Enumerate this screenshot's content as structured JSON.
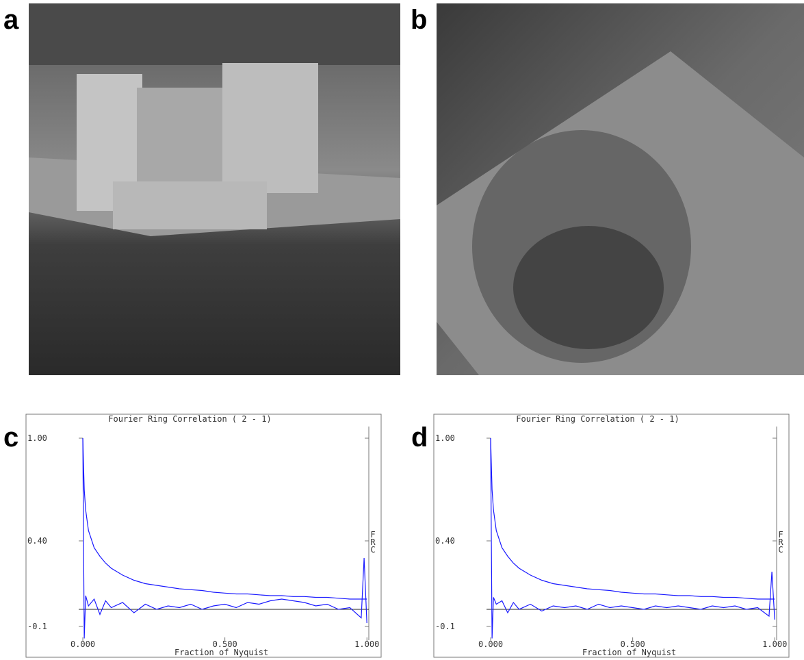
{
  "photos": [
    {
      "label": "a"
    },
    {
      "label": "b"
    }
  ],
  "chart_data": [
    {
      "type": "line",
      "panel": "c",
      "title": "Fourier Ring Correlation (  2 -    1)",
      "x_label": "Fraction of Nyquist",
      "y_label": "FRC",
      "xlim": [
        -0.2,
        1.05
      ],
      "ylim": [
        -0.18,
        1.08
      ],
      "xticks": [
        {
          "value": 0,
          "label": "0.000"
        },
        {
          "value": 0.5,
          "label": "0.500"
        },
        {
          "value": 1,
          "label": "1.000"
        }
      ],
      "yticks": [
        {
          "value": 1,
          "label": "1.00"
        },
        {
          "value": 0.4,
          "label": "0.40"
        },
        {
          "value": -0.1,
          "label": "-0.1"
        }
      ],
      "reference_line": 0,
      "x": [
        0,
        0.005,
        0.01,
        0.02,
        0.04,
        0.06,
        0.08,
        0.1,
        0.14,
        0.18,
        0.22,
        0.26,
        0.3,
        0.34,
        0.38,
        0.42,
        0.46,
        0.5,
        0.54,
        0.58,
        0.62,
        0.66,
        0.7,
        0.74,
        0.78,
        0.82,
        0.86,
        0.9,
        0.94,
        0.98,
        0.99,
        1.0
      ],
      "series": [
        {
          "color": "#1a1aff",
          "values": [
            1.0,
            0.7,
            0.58,
            0.46,
            0.36,
            0.31,
            0.27,
            0.24,
            0.2,
            0.17,
            0.15,
            0.14,
            0.13,
            0.12,
            0.115,
            0.11,
            0.1,
            0.095,
            0.09,
            0.09,
            0.085,
            0.08,
            0.08,
            0.075,
            0.075,
            0.07,
            0.07,
            0.065,
            0.06,
            0.06,
            0.06,
            0.06
          ]
        },
        {
          "color": "#1a1aff",
          "values": [
            1.0,
            -0.17,
            0.08,
            0.02,
            0.06,
            -0.03,
            0.05,
            0.01,
            0.04,
            -0.02,
            0.03,
            0.0,
            0.02,
            0.01,
            0.03,
            0.0,
            0.02,
            0.03,
            0.01,
            0.04,
            0.03,
            0.05,
            0.06,
            0.05,
            0.04,
            0.02,
            0.03,
            0.0,
            0.01,
            -0.05,
            0.3,
            -0.08
          ]
        }
      ]
    },
    {
      "type": "line",
      "panel": "d",
      "title": "Fourier Ring Correlation (  2 -    1)",
      "x_label": "Fraction of Nyquist",
      "y_label": "FRC",
      "xlim": [
        -0.2,
        1.05
      ],
      "ylim": [
        -0.18,
        1.08
      ],
      "xticks": [
        {
          "value": 0,
          "label": "0.000"
        },
        {
          "value": 0.5,
          "label": "0.500"
        },
        {
          "value": 1,
          "label": "1.000"
        }
      ],
      "yticks": [
        {
          "value": 1,
          "label": "1.00"
        },
        {
          "value": 0.4,
          "label": "0.40"
        },
        {
          "value": -0.1,
          "label": "-0.1"
        }
      ],
      "reference_line": 0,
      "x": [
        0,
        0.005,
        0.01,
        0.02,
        0.04,
        0.06,
        0.08,
        0.1,
        0.14,
        0.18,
        0.22,
        0.26,
        0.3,
        0.34,
        0.38,
        0.42,
        0.46,
        0.5,
        0.54,
        0.58,
        0.62,
        0.66,
        0.7,
        0.74,
        0.78,
        0.82,
        0.86,
        0.9,
        0.94,
        0.98,
        0.99,
        1.0
      ],
      "series": [
        {
          "color": "#1a1aff",
          "values": [
            1.0,
            0.7,
            0.58,
            0.46,
            0.36,
            0.31,
            0.27,
            0.24,
            0.2,
            0.17,
            0.15,
            0.14,
            0.13,
            0.12,
            0.115,
            0.11,
            0.1,
            0.095,
            0.09,
            0.09,
            0.085,
            0.08,
            0.08,
            0.075,
            0.075,
            0.07,
            0.07,
            0.065,
            0.06,
            0.06,
            0.06,
            0.06
          ]
        },
        {
          "color": "#1a1aff",
          "values": [
            1.0,
            -0.17,
            0.07,
            0.03,
            0.05,
            -0.02,
            0.04,
            0.0,
            0.03,
            -0.01,
            0.02,
            0.01,
            0.02,
            0.0,
            0.03,
            0.01,
            0.02,
            0.01,
            0.0,
            0.02,
            0.01,
            0.02,
            0.01,
            0.0,
            0.02,
            0.01,
            0.02,
            0.0,
            0.01,
            -0.04,
            0.22,
            -0.06
          ]
        }
      ]
    }
  ]
}
